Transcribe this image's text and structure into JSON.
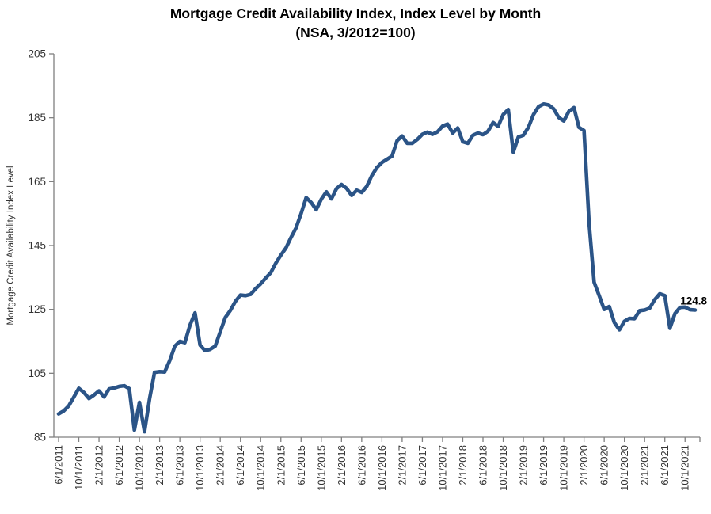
{
  "chart_data": {
    "type": "line",
    "title": "Mortgage Credit Availability Index, Index Level by Month",
    "subtitle": "(NSA, 3/2012=100)",
    "ylabel": "Mortgage Credit Availability Index Level",
    "xlabel": "",
    "ylim": [
      85,
      205
    ],
    "yticks": [
      85,
      105,
      125,
      145,
      165,
      185,
      205
    ],
    "x_tick_every": 4,
    "grid": false,
    "legend_position": "none",
    "annotation": {
      "text": "124.8"
    },
    "colors": {
      "line": "#2b5487",
      "axis": "#808080",
      "tick_text": "#333333",
      "annotation_text": "#000000"
    },
    "x": [
      "6/1/2011",
      "7/1/2011",
      "8/1/2011",
      "9/1/2011",
      "10/1/2011",
      "11/1/2011",
      "12/1/2011",
      "1/1/2012",
      "2/1/2012",
      "3/1/2012",
      "4/1/2012",
      "5/1/2012",
      "6/1/2012",
      "7/1/2012",
      "8/1/2012",
      "9/1/2012",
      "10/1/2012",
      "11/1/2012",
      "12/1/2012",
      "1/1/2013",
      "2/1/2013",
      "3/1/2013",
      "4/1/2013",
      "5/1/2013",
      "6/1/2013",
      "7/1/2013",
      "8/1/2013",
      "9/1/2013",
      "10/1/2013",
      "11/1/2013",
      "12/1/2013",
      "1/1/2014",
      "2/1/2014",
      "3/1/2014",
      "4/1/2014",
      "5/1/2014",
      "6/1/2014",
      "7/1/2014",
      "8/1/2014",
      "9/1/2014",
      "10/1/2014",
      "11/1/2014",
      "12/1/2014",
      "1/1/2015",
      "2/1/2015",
      "3/1/2015",
      "4/1/2015",
      "5/1/2015",
      "6/1/2015",
      "7/1/2015",
      "8/1/2015",
      "9/1/2015",
      "10/1/2015",
      "11/1/2015",
      "12/1/2015",
      "1/1/2016",
      "2/1/2016",
      "3/1/2016",
      "4/1/2016",
      "5/1/2016",
      "6/1/2016",
      "7/1/2016",
      "8/1/2016",
      "9/1/2016",
      "10/1/2016",
      "11/1/2016",
      "12/1/2016",
      "1/1/2017",
      "2/1/2017",
      "3/1/2017",
      "4/1/2017",
      "5/1/2017",
      "6/1/2017",
      "7/1/2017",
      "8/1/2017",
      "9/1/2017",
      "10/1/2017",
      "11/1/2017",
      "12/1/2017",
      "1/1/2018",
      "2/1/2018",
      "3/1/2018",
      "4/1/2018",
      "5/1/2018",
      "6/1/2018",
      "7/1/2018",
      "8/1/2018",
      "9/1/2018",
      "10/1/2018",
      "11/1/2018",
      "12/1/2018",
      "1/1/2019",
      "2/1/2019",
      "3/1/2019",
      "4/1/2019",
      "5/1/2019",
      "6/1/2019",
      "7/1/2019",
      "8/1/2019",
      "9/1/2019",
      "10/1/2019",
      "11/1/2019",
      "12/1/2019",
      "1/1/2020",
      "2/1/2020",
      "3/1/2020",
      "4/1/2020",
      "5/1/2020",
      "6/1/2020",
      "7/1/2020",
      "8/1/2020",
      "9/1/2020",
      "10/1/2020",
      "11/1/2020",
      "12/1/2020",
      "1/1/2021",
      "2/1/2021",
      "3/1/2021",
      "4/1/2021",
      "5/1/2021",
      "6/1/2021",
      "7/1/2021",
      "8/1/2021",
      "9/1/2021",
      "10/1/2021",
      "11/1/2021",
      "12/1/2021"
    ],
    "series": [
      {
        "name": "Mortgage Credit Availability Index (NSA)",
        "values": [
          92.3,
          93.2,
          94.8,
          97.5,
          100.3,
          99.0,
          97.1,
          98.2,
          99.5,
          97.6,
          100.1,
          100.4,
          100.9,
          101.1,
          100.2,
          87.2,
          95.9,
          86.7,
          97.0,
          105.3,
          105.5,
          105.4,
          109.0,
          113.5,
          115.0,
          114.6,
          120.0,
          123.9,
          113.8,
          112.1,
          112.5,
          113.5,
          118.0,
          122.5,
          124.7,
          127.5,
          129.5,
          129.3,
          129.7,
          131.5,
          133.0,
          134.8,
          136.5,
          139.5,
          142.0,
          144.2,
          147.5,
          150.5,
          155.0,
          160.0,
          158.5,
          156.2,
          159.5,
          161.8,
          159.6,
          162.8,
          164.1,
          162.9,
          160.7,
          162.3,
          161.6,
          163.5,
          166.9,
          169.4,
          171.0,
          172.0,
          173.0,
          177.8,
          179.3,
          177.0,
          177.0,
          178.2,
          179.8,
          180.5,
          179.8,
          180.6,
          182.4,
          183.0,
          180.2,
          181.8,
          177.5,
          177.0,
          179.5,
          180.2,
          179.7,
          180.8,
          183.5,
          182.3,
          186.0,
          187.6,
          174.2,
          179.0,
          179.5,
          182.0,
          186.0,
          188.5,
          189.3,
          189.0,
          187.8,
          185.1,
          184.0,
          187.0,
          188.2,
          182.0,
          181.0,
          152.1,
          133.5,
          129.3,
          125.0,
          125.9,
          120.9,
          118.6,
          121.3,
          122.2,
          122.1,
          124.6,
          124.8,
          125.4,
          128.1,
          129.9,
          129.3,
          119.1,
          123.7,
          125.6,
          125.7,
          124.9,
          124.8
        ]
      }
    ]
  }
}
